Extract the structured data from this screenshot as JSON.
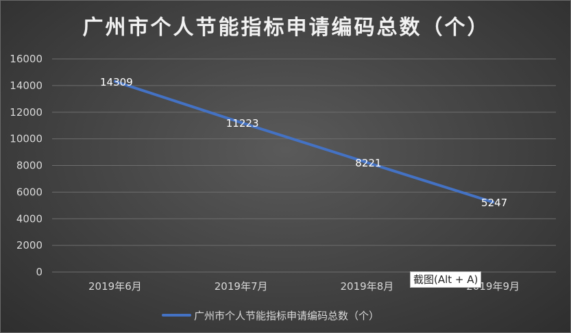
{
  "chart_data": {
    "type": "line",
    "title": "广州市个人节能指标申请编码总数（个）",
    "categories": [
      "2019年6月",
      "2019年7月",
      "2019年8月",
      "2019年9月"
    ],
    "series": [
      {
        "name": "广州市个人节能指标申请编码总数（个）",
        "values": [
          14309,
          11223,
          8221,
          5247
        ]
      }
    ],
    "ylim": [
      0,
      16000
    ],
    "yticks": [
      0,
      2000,
      4000,
      6000,
      8000,
      10000,
      12000,
      14000,
      16000
    ],
    "grid": true,
    "legend_position": "bottom",
    "line_color": "#4472c4"
  },
  "tooltip_text": "截图(Alt + A)"
}
